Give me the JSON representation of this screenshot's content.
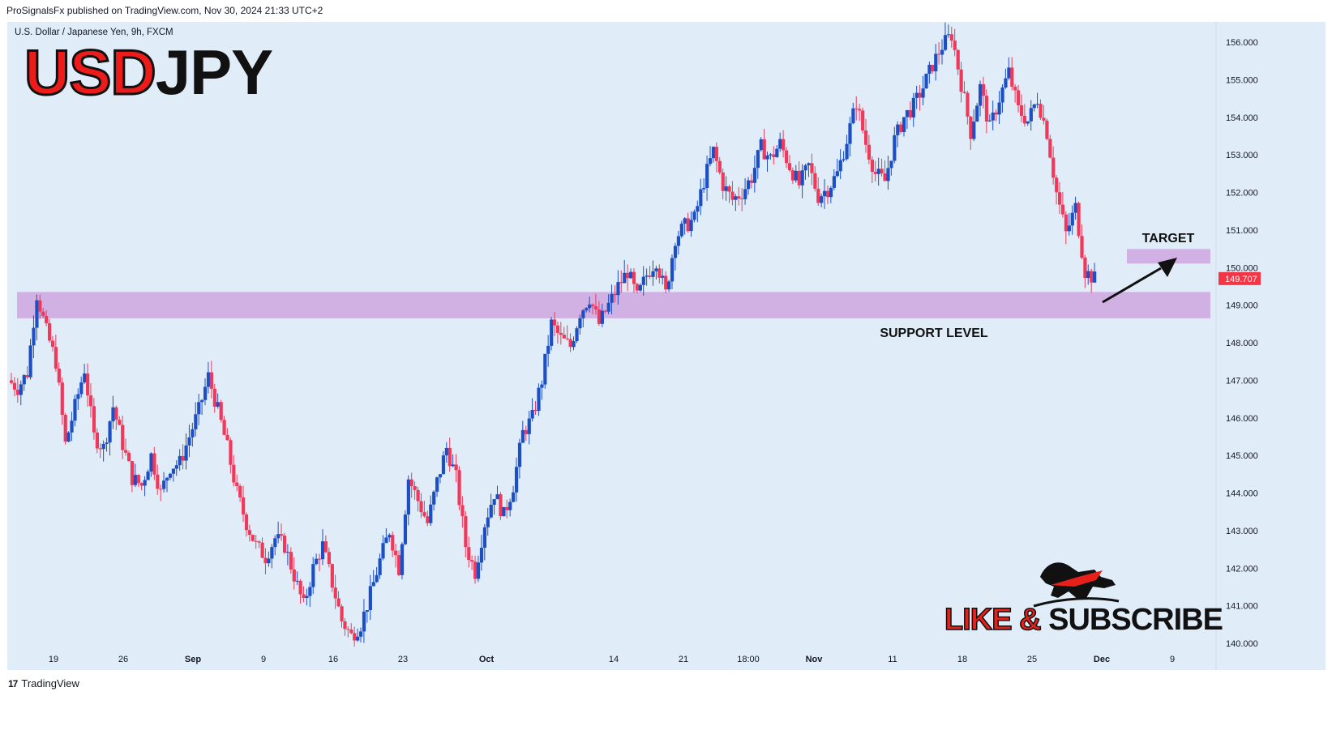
{
  "header": {
    "published": "ProSignalsFx published on TradingView.com, Nov 30, 2024 21:33 UTC+2",
    "symbol_desc": "U.S. Dollar / Japanese Yen, 9h, FXCM"
  },
  "title": {
    "part1": "USD",
    "part2": "JPY"
  },
  "footer": {
    "brand": "TradingView",
    "mark": "17"
  },
  "promo": {
    "like": "LIKE & ",
    "subscribe": "SUBSCRIBE"
  },
  "colors": {
    "background": "#e0edf8",
    "bull": "#1c4fc4",
    "bear": "#f0385a",
    "zone": "#cfa8e0",
    "price_tag": "#f23645"
  },
  "chart_data": {
    "type": "candlestick",
    "symbol": "USDJPY",
    "timeframe": "9h",
    "ylim": [
      139.8,
      156.4
    ],
    "y_ticks": [
      "156.000",
      "155.000",
      "154.000",
      "153.000",
      "152.000",
      "151.000",
      "150.000",
      "149.000",
      "148.000",
      "147.000",
      "146.000",
      "145.000",
      "144.000",
      "143.000",
      "142.000",
      "141.000",
      "140.000"
    ],
    "x_tick_labels": [
      "19",
      "26",
      "Sep",
      "9",
      "16",
      "23",
      "Oct",
      "14",
      "21",
      "18:00",
      "Nov",
      "11",
      "18",
      "25",
      "Dec",
      "9"
    ],
    "last_price": "149.707",
    "annotations": {
      "support_label": "SUPPORT LEVEL",
      "target_label": "TARGET",
      "support_zone": [
        148.65,
        149.35
      ],
      "target_zone": [
        150.15,
        150.45
      ]
    },
    "close_path": [
      147.0,
      146.8,
      147.2,
      149.3,
      148.3,
      147.5,
      145.3,
      146.3,
      147.3,
      145.5,
      145.2,
      146.3,
      145.3,
      144.4,
      144.2,
      145.0,
      144.0,
      144.7,
      144.8,
      145.5,
      146.2,
      147.1,
      146.2,
      145.2,
      144.0,
      143.2,
      142.6,
      142.3,
      142.8,
      142.6,
      141.8,
      141.0,
      142.0,
      142.6,
      141.6,
      140.6,
      140.2,
      140.5,
      141.3,
      142.2,
      143.0,
      142.0,
      144.4,
      143.8,
      143.2,
      144.3,
      145.2,
      144.4,
      142.6,
      141.9,
      143.2,
      144.0,
      143.4,
      144.2,
      145.6,
      146.0,
      147.0,
      148.5,
      148.1,
      147.9,
      148.8,
      149.2,
      148.5,
      149.0,
      149.5,
      149.9,
      149.2,
      149.8,
      150.2,
      149.3,
      150.8,
      151.1,
      151.3,
      152.3,
      153.1,
      152.2,
      151.8,
      152.0,
      152.4,
      153.2,
      152.9,
      153.3,
      152.7,
      152.2,
      152.7,
      151.9,
      152.1,
      152.5,
      153.4,
      154.4,
      153.3,
      152.5,
      152.3,
      153.4,
      154.0,
      154.3,
      154.8,
      155.4,
      155.9,
      156.2,
      154.9,
      153.6,
      154.8,
      153.7,
      154.5,
      155.2,
      154.2,
      153.9,
      154.5,
      153.6,
      152.0,
      150.9,
      151.6,
      149.9,
      149.7
    ]
  }
}
